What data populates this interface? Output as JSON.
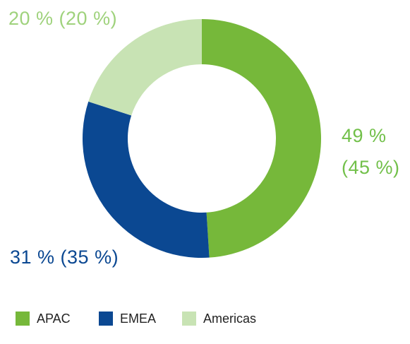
{
  "chart_data": {
    "type": "donut",
    "categories": [
      "APAC",
      "EMEA",
      "Americas"
    ],
    "values": [
      49,
      31,
      20
    ],
    "value_labels": [
      "49 % (45 %)",
      "31 % (35 %)",
      "20 % (20 %)"
    ],
    "colors": [
      "#76b83a",
      "#0b4892",
      "#c8e3b4"
    ],
    "label_colors": [
      "#72c04a",
      "#0b4892",
      "#9fd27c"
    ],
    "legend": "bottom-left"
  }
}
